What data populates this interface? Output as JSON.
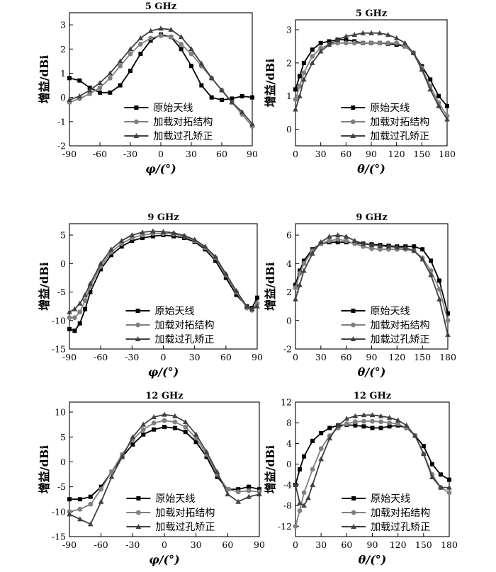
{
  "chart_data": [
    {
      "type": "line",
      "title": "5 GHz",
      "xlabel": "φ/(°)",
      "ylabel": "增益/dBi",
      "xlim": [
        -90,
        90
      ],
      "ylim": [
        -2,
        3.5
      ],
      "xticks": [
        -90,
        -60,
        -30,
        0,
        30,
        60,
        90
      ],
      "yticks": [
        -2,
        -1,
        0,
        1,
        2,
        3
      ],
      "legend": "bottom-center",
      "grid": false,
      "series": [
        {
          "name": "原始天线",
          "marker": "square",
          "color": "#000000",
          "x": [
            -90,
            -80,
            -70,
            -60,
            -50,
            -40,
            -30,
            -20,
            -10,
            0,
            10,
            20,
            30,
            40,
            50,
            60,
            70,
            80,
            90
          ],
          "y": [
            0.8,
            0.7,
            0.4,
            0.2,
            0.2,
            0.5,
            1.1,
            1.8,
            2.35,
            2.6,
            2.5,
            2.0,
            1.3,
            0.5,
            0.0,
            -0.1,
            -0.05,
            0.05,
            0.0
          ]
        },
        {
          "name": "加载对拓结构",
          "marker": "circle",
          "color": "#808080",
          "x": [
            -90,
            -80,
            -70,
            -60,
            -50,
            -40,
            -30,
            -20,
            -10,
            0,
            10,
            20,
            30,
            40,
            50,
            60,
            70,
            80,
            90
          ],
          "y": [
            -0.2,
            -0.05,
            0.15,
            0.4,
            0.8,
            1.3,
            1.8,
            2.2,
            2.45,
            2.55,
            2.5,
            2.2,
            1.8,
            1.3,
            0.8,
            0.3,
            -0.2,
            -0.7,
            -1.2
          ]
        },
        {
          "name": "加载过孔矫正",
          "marker": "triangle",
          "color": "#404040",
          "x": [
            -90,
            -80,
            -70,
            -60,
            -50,
            -40,
            -30,
            -20,
            -10,
            0,
            10,
            20,
            30,
            40,
            50,
            60,
            70,
            80,
            90
          ],
          "y": [
            -0.1,
            0.05,
            0.3,
            0.6,
            1.0,
            1.5,
            2.0,
            2.45,
            2.75,
            2.85,
            2.8,
            2.5,
            2.0,
            1.4,
            0.8,
            0.3,
            -0.2,
            -0.6,
            -1.1
          ]
        }
      ]
    },
    {
      "type": "line",
      "title": "5 GHz",
      "xlabel": "θ/(°)",
      "ylabel": "增益/dBi",
      "xlim": [
        0,
        180
      ],
      "ylim": [
        -0.5,
        3.3
      ],
      "xticks": [
        0,
        30,
        60,
        90,
        120,
        150,
        180
      ],
      "yticks": [
        0,
        1,
        2,
        3
      ],
      "legend": "bottom-center",
      "grid": false,
      "series": [
        {
          "name": "原始天线",
          "marker": "square",
          "color": "#000000",
          "x": [
            0,
            5,
            10,
            20,
            30,
            40,
            50,
            60,
            70,
            80,
            90,
            100,
            110,
            120,
            130,
            140,
            150,
            160,
            170,
            180
          ],
          "y": [
            1.2,
            1.6,
            2.0,
            2.4,
            2.6,
            2.65,
            2.7,
            2.7,
            2.65,
            2.6,
            2.6,
            2.6,
            2.58,
            2.55,
            2.5,
            2.3,
            1.9,
            1.5,
            1.0,
            0.7
          ]
        },
        {
          "name": "加载对拓结构",
          "marker": "circle",
          "color": "#808080",
          "x": [
            0,
            5,
            10,
            20,
            30,
            40,
            50,
            60,
            70,
            80,
            90,
            100,
            110,
            120,
            130,
            140,
            150,
            160,
            170,
            180
          ],
          "y": [
            0.9,
            1.3,
            1.7,
            2.2,
            2.45,
            2.55,
            2.6,
            2.6,
            2.6,
            2.6,
            2.6,
            2.6,
            2.6,
            2.6,
            2.5,
            2.3,
            1.85,
            1.3,
            0.8,
            0.4
          ]
        },
        {
          "name": "加载过孔矫正",
          "marker": "triangle",
          "color": "#404040",
          "x": [
            0,
            5,
            10,
            20,
            30,
            40,
            50,
            60,
            70,
            80,
            90,
            100,
            110,
            120,
            130,
            140,
            150,
            160,
            170,
            180
          ],
          "y": [
            0.6,
            1.0,
            1.5,
            2.0,
            2.35,
            2.55,
            2.7,
            2.8,
            2.85,
            2.9,
            2.9,
            2.9,
            2.85,
            2.75,
            2.6,
            2.3,
            1.8,
            1.2,
            0.7,
            0.3
          ]
        }
      ]
    },
    {
      "type": "line",
      "title": "9 GHz",
      "xlabel": "φ/(°)",
      "ylabel": "增益/dBi",
      "xlim": [
        -90,
        90
      ],
      "ylim": [
        -15,
        7
      ],
      "xticks": [
        -90,
        -60,
        -30,
        0,
        30,
        60,
        90
      ],
      "yticks": [
        -15,
        -10,
        -5,
        0,
        5
      ],
      "legend": "bottom-center",
      "grid": false,
      "series": [
        {
          "name": "原始天线",
          "marker": "square",
          "color": "#000000",
          "x": [
            -90,
            -85,
            -80,
            -75,
            -70,
            -60,
            -50,
            -40,
            -30,
            -20,
            -10,
            0,
            10,
            20,
            30,
            40,
            50,
            60,
            70,
            80,
            85,
            90
          ],
          "y": [
            -11.5,
            -11.8,
            -10.5,
            -8.0,
            -5.0,
            -1.0,
            1.5,
            3.0,
            4.0,
            4.5,
            4.8,
            5.0,
            4.8,
            4.5,
            3.8,
            2.5,
            0.5,
            -2.5,
            -5.5,
            -7.5,
            -7.8,
            -6.0
          ]
        },
        {
          "name": "加载对拓结构",
          "marker": "circle",
          "color": "#808080",
          "x": [
            -90,
            -85,
            -80,
            -75,
            -70,
            -60,
            -50,
            -40,
            -30,
            -20,
            -10,
            0,
            10,
            20,
            30,
            40,
            50,
            60,
            70,
            80,
            85,
            90
          ],
          "y": [
            -9.5,
            -9.5,
            -8.5,
            -6.5,
            -4.0,
            -0.5,
            2.0,
            3.5,
            4.5,
            5.0,
            5.3,
            5.3,
            5.2,
            4.8,
            4.0,
            2.8,
            1.0,
            -2.0,
            -5.0,
            -7.8,
            -8.2,
            -7.0
          ]
        },
        {
          "name": "加载过孔矫正",
          "marker": "triangle",
          "color": "#404040",
          "x": [
            -90,
            -85,
            -80,
            -75,
            -70,
            -60,
            -50,
            -40,
            -30,
            -20,
            -10,
            0,
            10,
            20,
            30,
            40,
            50,
            60,
            70,
            80,
            85,
            90
          ],
          "y": [
            -8.5,
            -8.0,
            -7.0,
            -5.5,
            -3.5,
            0.0,
            2.5,
            4.0,
            5.0,
            5.5,
            5.7,
            5.6,
            5.4,
            4.9,
            4.2,
            3.0,
            1.2,
            -1.8,
            -4.8,
            -7.5,
            -8.0,
            -7.5
          ]
        }
      ]
    },
    {
      "type": "line",
      "title": "9 GHz",
      "xlabel": "θ/(°)",
      "ylabel": "增益/dBi",
      "xlim": [
        0,
        180
      ],
      "ylim": [
        -2,
        6.8
      ],
      "xticks": [
        0,
        30,
        60,
        90,
        120,
        150,
        180
      ],
      "yticks": [
        -2,
        0,
        2,
        4,
        6
      ],
      "legend": "bottom-center",
      "grid": false,
      "series": [
        {
          "name": "原始天线",
          "marker": "square",
          "color": "#000000",
          "x": [
            0,
            5,
            10,
            20,
            30,
            40,
            50,
            60,
            70,
            80,
            90,
            100,
            110,
            120,
            130,
            140,
            150,
            160,
            170,
            180
          ],
          "y": [
            2.5,
            3.5,
            4.2,
            5.0,
            5.4,
            5.5,
            5.5,
            5.5,
            5.45,
            5.4,
            5.35,
            5.3,
            5.25,
            5.2,
            5.2,
            5.2,
            5.0,
            4.2,
            2.8,
            0.5
          ]
        },
        {
          "name": "加载对拓结构",
          "marker": "circle",
          "color": "#808080",
          "x": [
            0,
            5,
            10,
            20,
            30,
            40,
            50,
            60,
            70,
            80,
            90,
            100,
            110,
            120,
            130,
            140,
            150,
            160,
            170,
            180
          ],
          "y": [
            2.3,
            3.3,
            4.0,
            4.9,
            5.4,
            5.6,
            5.7,
            5.6,
            5.4,
            5.2,
            5.05,
            5.0,
            5.0,
            5.0,
            5.0,
            4.9,
            4.4,
            3.5,
            2.2,
            0.0
          ]
        },
        {
          "name": "加载过孔矫正",
          "marker": "triangle",
          "color": "#404040",
          "x": [
            0,
            5,
            10,
            20,
            30,
            40,
            50,
            60,
            70,
            80,
            90,
            100,
            110,
            120,
            130,
            140,
            150,
            160,
            170,
            180
          ],
          "y": [
            1.5,
            2.5,
            3.5,
            4.7,
            5.5,
            5.9,
            6.0,
            5.9,
            5.6,
            5.4,
            5.3,
            5.25,
            5.2,
            5.15,
            5.1,
            4.9,
            4.3,
            3.2,
            1.5,
            -1.0
          ]
        }
      ]
    },
    {
      "type": "line",
      "title": "12 GHz",
      "xlabel": "φ/(°)",
      "ylabel": "增益/dBi",
      "xlim": [
        -90,
        90
      ],
      "ylim": [
        -15,
        12
      ],
      "xticks": [
        -90,
        -60,
        -30,
        0,
        30,
        60,
        90
      ],
      "yticks": [
        -15,
        -10,
        -5,
        0,
        5,
        10
      ],
      "legend": "bottom-center",
      "grid": false,
      "series": [
        {
          "name": "原始天线",
          "marker": "square",
          "color": "#000000",
          "x": [
            -90,
            -80,
            -70,
            -60,
            -50,
            -40,
            -30,
            -20,
            -10,
            0,
            10,
            20,
            30,
            40,
            50,
            60,
            70,
            80,
            90
          ],
          "y": [
            -7.5,
            -7.5,
            -7.0,
            -5.0,
            -2.0,
            1.0,
            3.5,
            5.5,
            6.5,
            7.0,
            6.8,
            6.0,
            4.0,
            1.0,
            -3.0,
            -5.5,
            -5.5,
            -5.0,
            -5.5
          ]
        },
        {
          "name": "加载对拓结构",
          "marker": "circle",
          "color": "#808080",
          "x": [
            -90,
            -80,
            -70,
            -60,
            -50,
            -40,
            -30,
            -20,
            -10,
            0,
            10,
            20,
            30,
            40,
            50,
            60,
            70,
            80,
            90
          ],
          "y": [
            -10.0,
            -9.5,
            -8.5,
            -5.5,
            -2.0,
            1.5,
            4.5,
            6.5,
            7.8,
            8.3,
            8.0,
            7.0,
            4.8,
            1.5,
            -2.5,
            -5.5,
            -6.0,
            -5.8,
            -6.0
          ]
        },
        {
          "name": "加载过孔矫正",
          "marker": "triangle",
          "color": "#404040",
          "x": [
            -90,
            -80,
            -70,
            -60,
            -50,
            -40,
            -30,
            -20,
            -10,
            0,
            10,
            20,
            30,
            40,
            50,
            60,
            70,
            80,
            90
          ],
          "y": [
            -10.5,
            -11.5,
            -12.5,
            -8.0,
            -3.0,
            1.0,
            5.0,
            7.5,
            9.0,
            9.5,
            9.2,
            8.0,
            5.5,
            2.0,
            -2.0,
            -6.5,
            -8.0,
            -7.0,
            -6.5
          ]
        }
      ]
    },
    {
      "type": "line",
      "title": "12 GHz",
      "xlabel": "θ/(°)",
      "ylabel": "增益/dBi",
      "xlim": [
        0,
        180
      ],
      "ylim": [
        -14,
        12
      ],
      "xticks": [
        0,
        30,
        60,
        90,
        120,
        150,
        180
      ],
      "yticks": [
        -12,
        -8,
        -4,
        0,
        4,
        8,
        12
      ],
      "legend": "bottom-center",
      "grid": false,
      "series": [
        {
          "name": "原始天线",
          "marker": "square",
          "color": "#000000",
          "x": [
            0,
            5,
            10,
            20,
            30,
            40,
            50,
            60,
            70,
            80,
            90,
            100,
            110,
            120,
            130,
            140,
            150,
            160,
            170,
            180
          ],
          "y": [
            -4.0,
            -1.0,
            1.5,
            4.5,
            6.0,
            7.0,
            7.5,
            7.6,
            7.5,
            7.3,
            7.0,
            7.0,
            7.3,
            7.5,
            7.0,
            5.5,
            3.5,
            0.0,
            -2.0,
            -3.0
          ]
        },
        {
          "name": "加载对拓结构",
          "marker": "circle",
          "color": "#808080",
          "x": [
            0,
            5,
            10,
            20,
            30,
            40,
            50,
            60,
            70,
            80,
            90,
            100,
            110,
            120,
            130,
            140,
            150,
            160,
            170,
            180
          ],
          "y": [
            -12.0,
            -9.0,
            -5.5,
            -1.0,
            3.0,
            5.5,
            7.0,
            7.8,
            8.2,
            8.3,
            8.3,
            8.2,
            8.0,
            7.8,
            7.0,
            5.5,
            2.0,
            -2.0,
            -4.5,
            -5.5
          ]
        },
        {
          "name": "加载过孔矫正",
          "marker": "triangle",
          "color": "#404040",
          "x": [
            0,
            5,
            10,
            15,
            20,
            30,
            40,
            50,
            60,
            70,
            80,
            90,
            100,
            110,
            120,
            130,
            140,
            150,
            160,
            170,
            180
          ],
          "y": [
            -4.0,
            -7.5,
            -8.0,
            -6.5,
            -4.0,
            1.0,
            5.0,
            7.5,
            8.8,
            9.3,
            9.5,
            9.5,
            9.3,
            9.0,
            8.5,
            7.5,
            5.5,
            2.0,
            -2.5,
            -4.5,
            -4.5
          ]
        }
      ]
    }
  ]
}
